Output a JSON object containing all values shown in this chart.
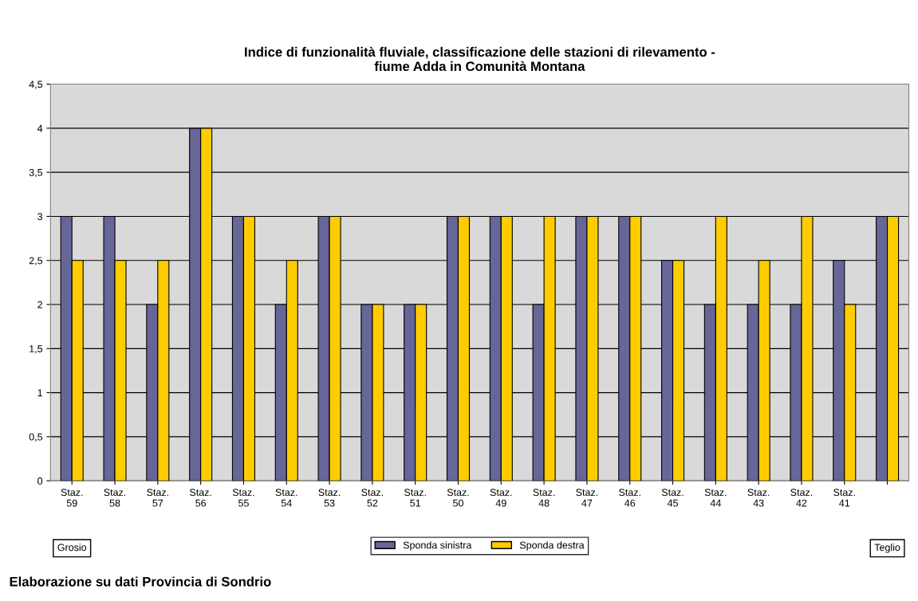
{
  "chart_data": {
    "type": "bar",
    "title": "Indice di funzionalità fluviale, classificazione delle stazioni di rilevamento -\nfiume Adda in Comunità Montana",
    "categories": [
      "Staz.\n59",
      "Staz.\n58",
      "Staz.\n57",
      "Staz.\n56",
      "Staz.\n55",
      "Staz.\n54",
      "Staz.\n53",
      "Staz.\n52",
      "Staz.\n51",
      "Staz.\n50",
      "Staz.\n49",
      "Staz.\n48",
      "Staz.\n47",
      "Staz.\n46",
      "Staz.\n45",
      "Staz.\n44",
      "Staz.\n43",
      "Staz.\n42",
      "Staz.\n41",
      null
    ],
    "series": [
      {
        "name": "Sponda sinistra",
        "color": "#666699",
        "values": [
          3,
          3,
          2,
          4,
          3,
          2,
          3,
          2,
          2,
          3,
          3,
          2,
          3,
          3,
          2.5,
          2,
          2,
          2,
          2.5,
          3
        ]
      },
      {
        "name": "Sponda destra",
        "color": "#ffcc00",
        "values": [
          2.5,
          2.5,
          2.5,
          4,
          3,
          2.5,
          3,
          2,
          2,
          3,
          3,
          3,
          3,
          3,
          2.5,
          3,
          2.5,
          3,
          2,
          3
        ]
      }
    ],
    "ylim": [
      0,
      4.5
    ],
    "yticks": [
      0,
      {
        "value": 0.5,
        "label": "0,5"
      },
      1,
      {
        "value": 1.5,
        "label": "1,5"
      },
      2,
      {
        "value": 2.5,
        "label": "2,5"
      },
      3,
      {
        "value": 3.5,
        "label": "3,5"
      },
      4,
      {
        "value": 4.5,
        "label": "4,5"
      }
    ],
    "grid": "y",
    "legend": "bottom",
    "annotations": [
      "Grosio",
      "Teglio",
      "Elaborazione su dati Provincia di Sondrio"
    ]
  }
}
